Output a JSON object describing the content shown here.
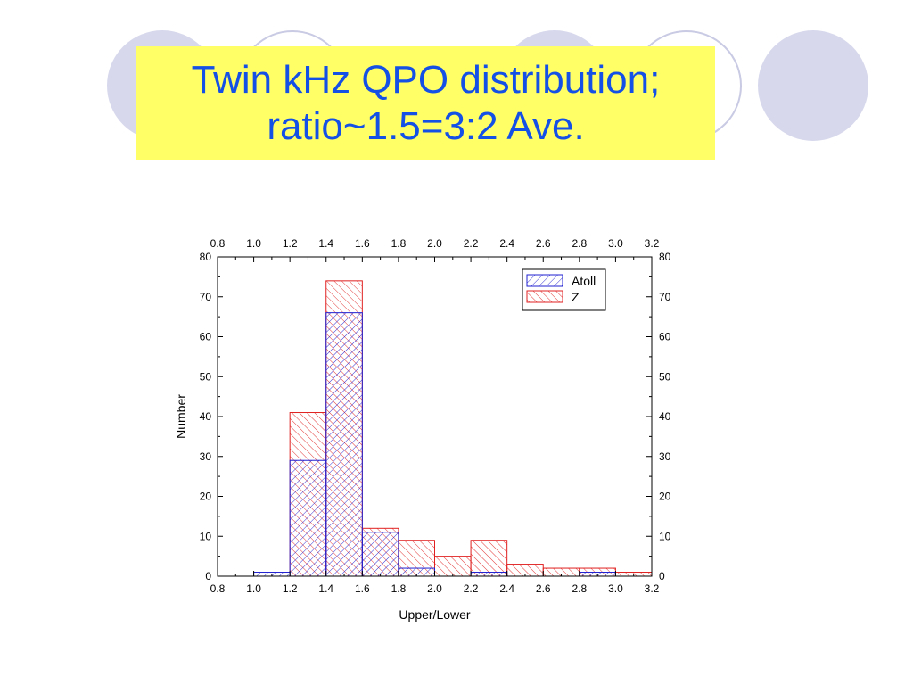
{
  "slide": {
    "title_line1": "Twin kHz QPO distribution;",
    "title_line2": "ratio~1.5=3:2 Ave.",
    "title_color": "#1450e6",
    "title_background": "#ffff66",
    "decoration_color": "#d7d8ec"
  },
  "chart_data": {
    "type": "bar",
    "subtype": "overlapping histogram",
    "title": "",
    "xlabel": "Upper/Lower",
    "ylabel": "Number",
    "xlim": [
      0.8,
      3.2
    ],
    "ylim": [
      0,
      80
    ],
    "x_ticks": [
      0.8,
      1.0,
      1.2,
      1.4,
      1.6,
      1.8,
      2.0,
      2.2,
      2.4,
      2.6,
      2.8,
      3.0,
      3.2
    ],
    "x_tick_labels": [
      "0.8",
      "1.0",
      "1.2",
      "1.4",
      "1.6",
      "1.8",
      "2.0",
      "2.2",
      "2.4",
      "2.6",
      "2.8",
      "3.0",
      "3.2"
    ],
    "y_ticks": [
      0,
      10,
      20,
      30,
      40,
      50,
      60,
      70,
      80
    ],
    "y_tick_labels": [
      "0",
      "10",
      "20",
      "30",
      "40",
      "50",
      "60",
      "70",
      "80"
    ],
    "bin_edges": [
      1.0,
      1.2,
      1.4,
      1.6,
      1.8,
      2.0,
      2.2,
      2.4,
      2.6,
      2.8,
      3.0,
      3.2
    ],
    "legend_position": "top-right",
    "grid": false,
    "series": [
      {
        "name": "Z",
        "color": "#e02020",
        "hatch": "backslash",
        "values": [
          0,
          41,
          74,
          12,
          9,
          5,
          9,
          3,
          2,
          2,
          1
        ]
      },
      {
        "name": "Atoll",
        "color": "#2020d0",
        "hatch": "slash",
        "values": [
          1,
          29,
          66,
          11,
          2,
          0,
          1,
          0,
          0,
          1,
          0
        ]
      }
    ]
  }
}
